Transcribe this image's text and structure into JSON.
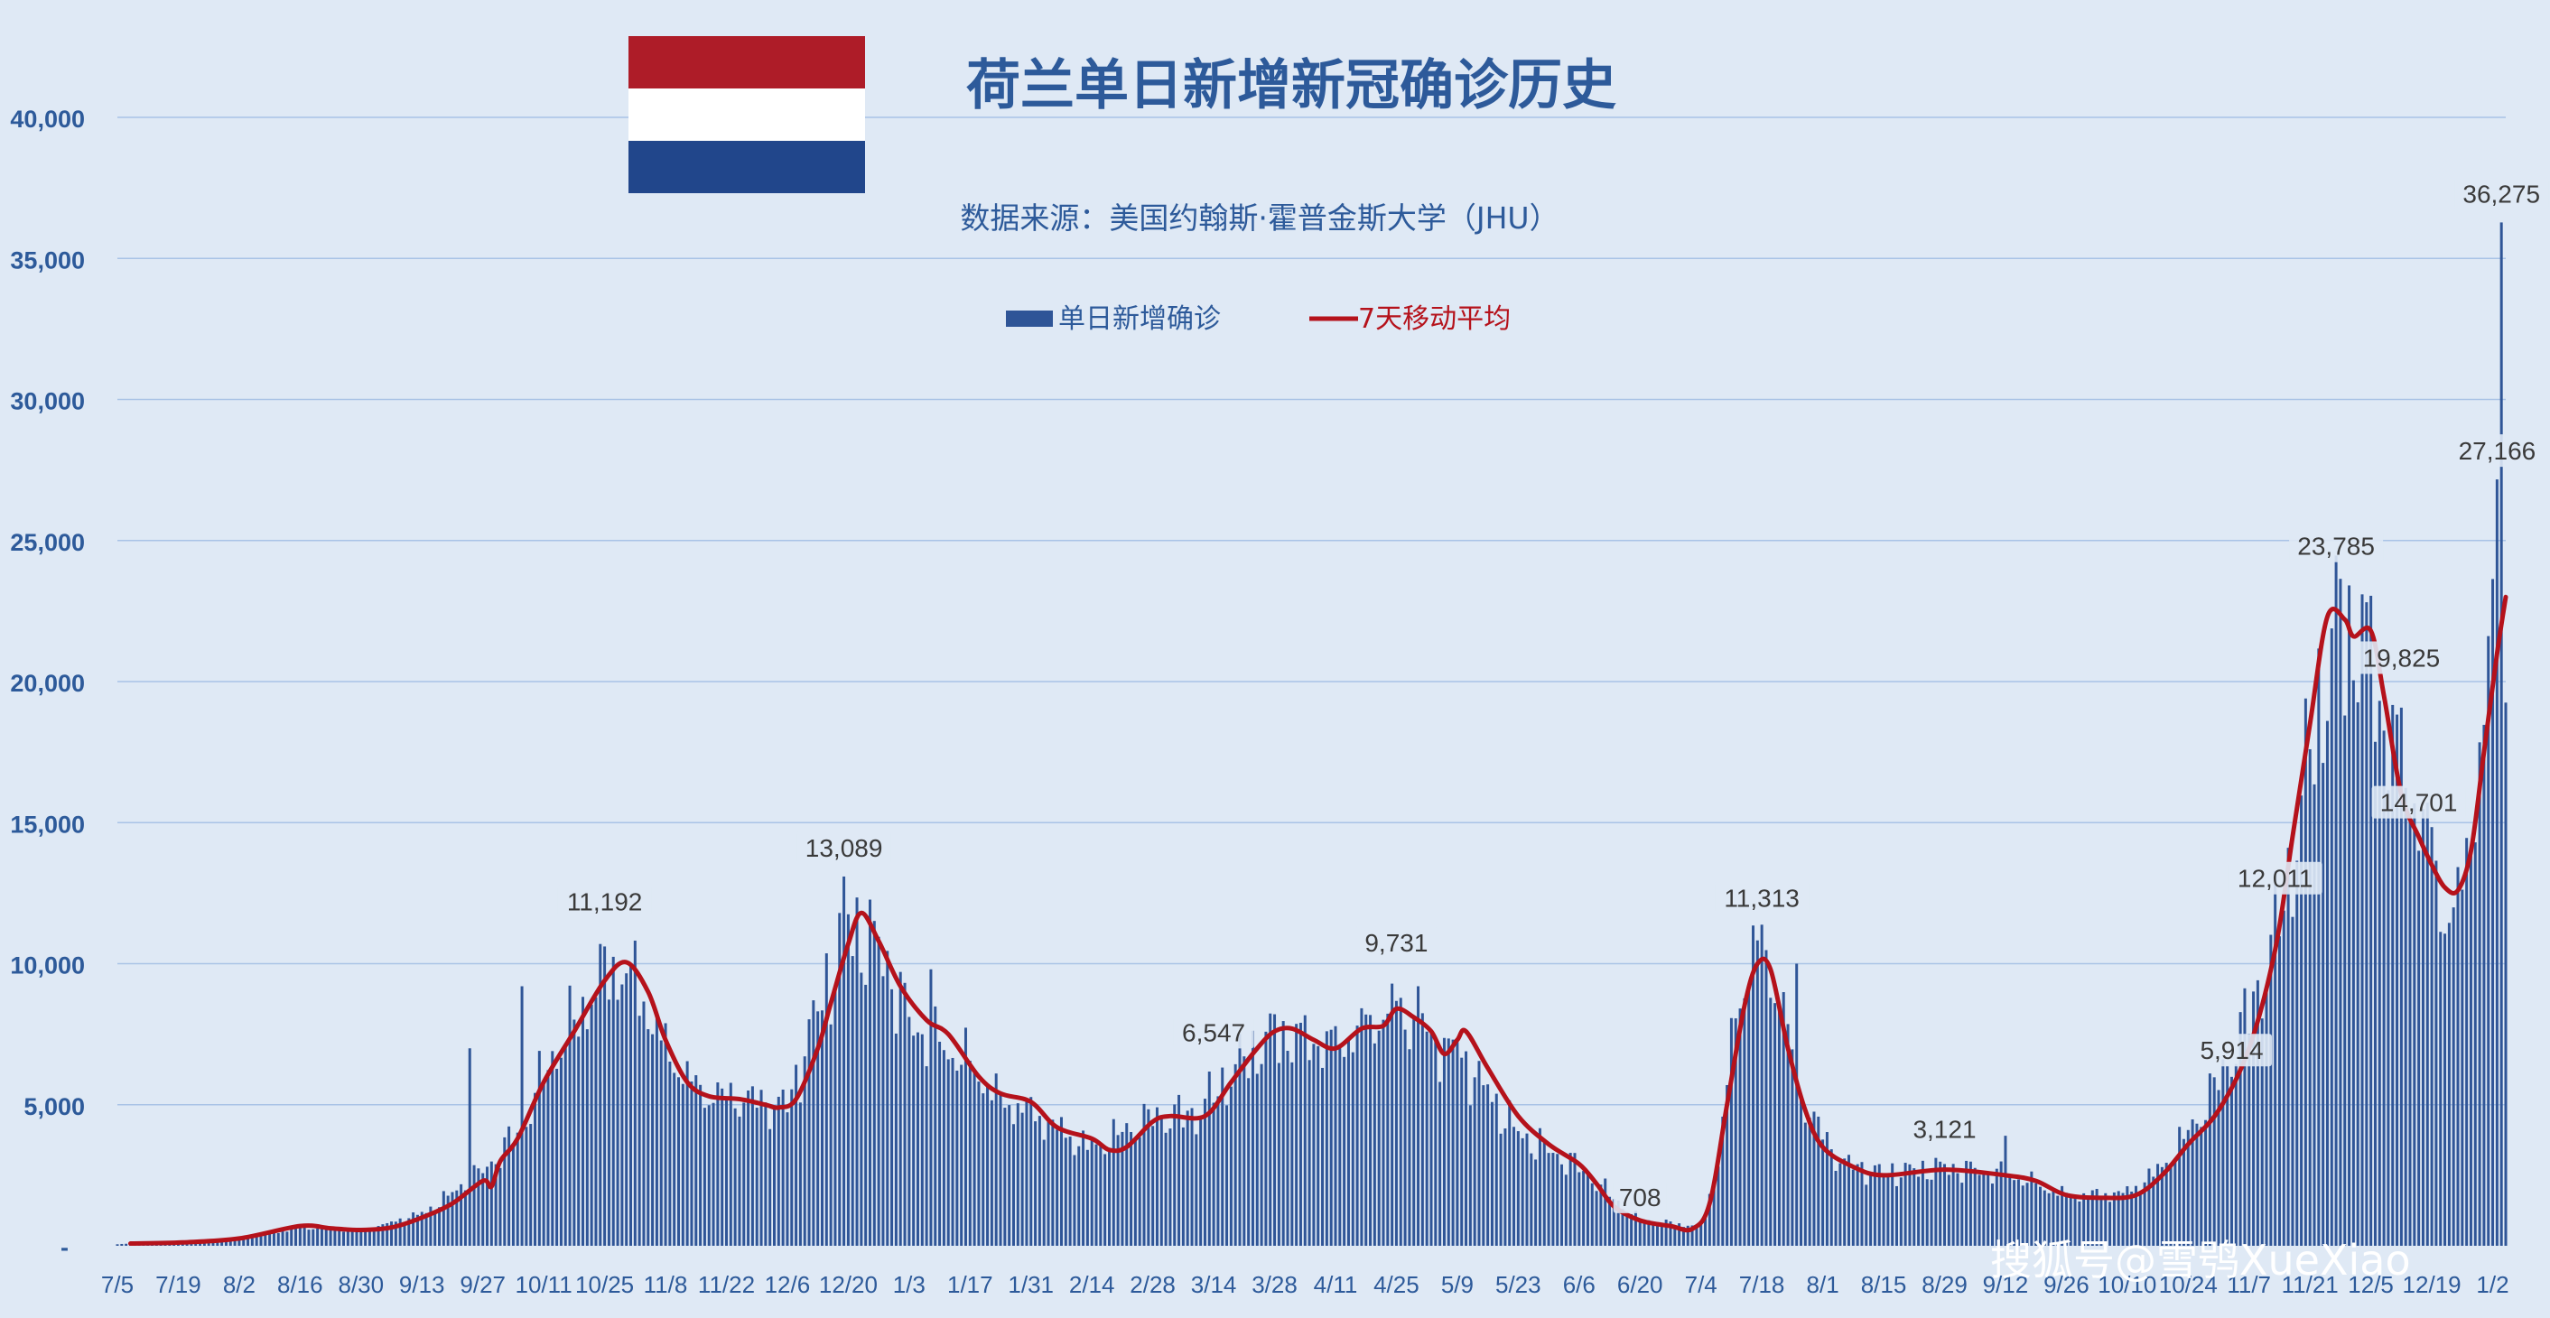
{
  "colors": {
    "background": "#dfe9f5",
    "bars": "#2f5597",
    "average_line": "#b5121b",
    "grid": "#a9c3e6",
    "axis_text": "#2d5a9a",
    "flag_red": "#ae1c28",
    "flag_white": "#ffffff",
    "flag_blue": "#21468b"
  },
  "watermark": "搜狐号@雪鸮XueXiao",
  "chart_data": {
    "type": "bar",
    "title": "荷兰单日新增新冠确诊历史",
    "subtitle": "数据来源：美国约翰斯·霍普金斯大学（JHU）",
    "legend": {
      "position": "top-center",
      "entries": [
        {
          "label": "单日新增确诊",
          "kind": "bar"
        },
        {
          "label": "7天移动平均",
          "kind": "line"
        }
      ]
    },
    "grid": true,
    "ylim": [
      0,
      40000
    ],
    "y_ticks": [
      {
        "value": 0,
        "label": "-"
      },
      {
        "value": 5000,
        "label": "5,000"
      },
      {
        "value": 10000,
        "label": "10,000"
      },
      {
        "value": 15000,
        "label": "15,000"
      },
      {
        "value": 20000,
        "label": "20,000"
      },
      {
        "value": 25000,
        "label": "25,000"
      },
      {
        "value": 30000,
        "label": "30,000"
      },
      {
        "value": 35000,
        "label": "35,000"
      },
      {
        "value": 40000,
        "label": "40,000"
      }
    ],
    "x_start": "2020-07-05",
    "x_end": "2022-01-05",
    "x_ticks": [
      "7/5",
      "7/19",
      "8/2",
      "8/16",
      "8/30",
      "9/13",
      "9/27",
      "10/11",
      "10/25",
      "11/8",
      "11/22",
      "12/6",
      "12/20",
      "1/3",
      "1/17",
      "1/31",
      "2/14",
      "2/28",
      "3/14",
      "3/28",
      "4/11",
      "4/25",
      "5/9",
      "5/23",
      "6/6",
      "6/20",
      "7/4",
      "7/18",
      "8/1",
      "8/15",
      "8/29",
      "9/12",
      "9/26",
      "10/10",
      "10/24",
      "11/7",
      "11/21",
      "12/5",
      "12/19",
      "1/2"
    ],
    "daily_anchors": [
      {
        "date": "2020-07-05",
        "value": 60
      },
      {
        "date": "2020-07-20",
        "value": 120
      },
      {
        "date": "2020-08-03",
        "value": 300
      },
      {
        "date": "2020-08-17",
        "value": 650
      },
      {
        "date": "2020-08-31",
        "value": 550
      },
      {
        "date": "2020-09-14",
        "value": 1200
      },
      {
        "date": "2020-09-28",
        "value": 2800
      },
      {
        "date": "2020-10-06",
        "value": 4200
      },
      {
        "date": "2020-10-12",
        "value": 6500
      },
      {
        "date": "2020-10-19",
        "value": 8200
      },
      {
        "date": "2020-10-26",
        "value": 10000
      },
      {
        "date": "2020-11-01",
        "value": 9500
      },
      {
        "date": "2020-11-08",
        "value": 7000
      },
      {
        "date": "2020-11-16",
        "value": 5500
      },
      {
        "date": "2020-11-29",
        "value": 5200
      },
      {
        "date": "2020-12-06",
        "value": 5000
      },
      {
        "date": "2020-12-12",
        "value": 8000
      },
      {
        "date": "2020-12-20",
        "value": 11500
      },
      {
        "date": "2020-12-28",
        "value": 10500
      },
      {
        "date": "2021-01-03",
        "value": 8000
      },
      {
        "date": "2021-01-17",
        "value": 6500
      },
      {
        "date": "2021-01-24",
        "value": 5200
      },
      {
        "date": "2021-01-31",
        "value": 4800
      },
      {
        "date": "2021-02-10",
        "value": 3800
      },
      {
        "date": "2021-02-14",
        "value": 3500
      },
      {
        "date": "2021-02-28",
        "value": 4600
      },
      {
        "date": "2021-03-10",
        "value": 4700
      },
      {
        "date": "2021-03-20",
        "value": 6500
      },
      {
        "date": "2021-03-28",
        "value": 7600
      },
      {
        "date": "2021-04-11",
        "value": 7200
      },
      {
        "date": "2021-04-25",
        "value": 8600
      },
      {
        "date": "2021-05-02",
        "value": 7500
      },
      {
        "date": "2021-05-09",
        "value": 7000
      },
      {
        "date": "2021-05-23",
        "value": 4000
      },
      {
        "date": "2021-06-06",
        "value": 2800
      },
      {
        "date": "2021-06-20",
        "value": 900
      },
      {
        "date": "2021-07-04",
        "value": 700
      },
      {
        "date": "2021-07-08",
        "value": 3000
      },
      {
        "date": "2021-07-12",
        "value": 8500
      },
      {
        "date": "2021-07-17",
        "value": 11000
      },
      {
        "date": "2021-07-22",
        "value": 9000
      },
      {
        "date": "2021-07-28",
        "value": 5000
      },
      {
        "date": "2021-08-05",
        "value": 3000
      },
      {
        "date": "2021-08-15",
        "value": 2600
      },
      {
        "date": "2021-08-29",
        "value": 2800
      },
      {
        "date": "2021-09-12",
        "value": 2600
      },
      {
        "date": "2021-09-26",
        "value": 1800
      },
      {
        "date": "2021-10-10",
        "value": 1900
      },
      {
        "date": "2021-10-18",
        "value": 2800
      },
      {
        "date": "2021-10-26",
        "value": 4500
      },
      {
        "date": "2021-11-02",
        "value": 6500
      },
      {
        "date": "2021-11-10",
        "value": 9500
      },
      {
        "date": "2021-11-16",
        "value": 13000
      },
      {
        "date": "2021-11-22",
        "value": 18500
      },
      {
        "date": "2021-11-27",
        "value": 22000
      },
      {
        "date": "2021-12-03",
        "value": 22000
      },
      {
        "date": "2021-12-08",
        "value": 19000
      },
      {
        "date": "2021-12-12",
        "value": 17500
      },
      {
        "date": "2021-12-19",
        "value": 14200
      },
      {
        "date": "2021-12-22",
        "value": 11800
      },
      {
        "date": "2021-12-26",
        "value": 12500
      },
      {
        "date": "2021-12-29",
        "value": 16500
      },
      {
        "date": "2022-01-01",
        "value": 20000
      },
      {
        "date": "2022-01-03",
        "value": 27000
      },
      {
        "date": "2022-01-05",
        "value": 24000
      }
    ],
    "spikes": [
      {
        "date": "2020-09-24",
        "value": 7000
      },
      {
        "date": "2020-10-06",
        "value": 9200
      },
      {
        "date": "2020-12-19",
        "value": 13089
      },
      {
        "date": "2021-01-08",
        "value": 9800
      },
      {
        "date": "2021-04-30",
        "value": 9200
      },
      {
        "date": "2021-07-26",
        "value": 10000
      },
      {
        "date": "2021-09-12",
        "value": 3900
      },
      {
        "date": "2022-01-03",
        "value": 27166
      },
      {
        "date": "2022-01-04",
        "value": 36275
      }
    ],
    "moving_average": [
      {
        "date": "2020-07-08",
        "value": 80
      },
      {
        "date": "2020-07-20",
        "value": 120
      },
      {
        "date": "2020-08-02",
        "value": 260
      },
      {
        "date": "2020-08-16",
        "value": 700
      },
      {
        "date": "2020-08-23",
        "value": 620
      },
      {
        "date": "2020-08-30",
        "value": 560
      },
      {
        "date": "2020-09-06",
        "value": 650
      },
      {
        "date": "2020-09-13",
        "value": 1000
      },
      {
        "date": "2020-09-20",
        "value": 1500
      },
      {
        "date": "2020-09-27",
        "value": 2300
      },
      {
        "date": "2020-09-29",
        "value": 2100
      },
      {
        "date": "2020-10-01",
        "value": 3000
      },
      {
        "date": "2020-10-05",
        "value": 3800
      },
      {
        "date": "2020-10-11",
        "value": 5800
      },
      {
        "date": "2020-10-18",
        "value": 7600
      },
      {
        "date": "2020-10-25",
        "value": 9400
      },
      {
        "date": "2020-10-30",
        "value": 10050
      },
      {
        "date": "2020-11-04",
        "value": 9000
      },
      {
        "date": "2020-11-08",
        "value": 7300
      },
      {
        "date": "2020-11-13",
        "value": 5800
      },
      {
        "date": "2020-11-18",
        "value": 5300
      },
      {
        "date": "2020-11-25",
        "value": 5200
      },
      {
        "date": "2020-12-01",
        "value": 5000
      },
      {
        "date": "2020-12-04",
        "value": 4900
      },
      {
        "date": "2020-12-08",
        "value": 5200
      },
      {
        "date": "2020-12-13",
        "value": 7000
      },
      {
        "date": "2020-12-16",
        "value": 8600
      },
      {
        "date": "2020-12-20",
        "value": 10700
      },
      {
        "date": "2020-12-23",
        "value": 11800
      },
      {
        "date": "2020-12-27",
        "value": 10800
      },
      {
        "date": "2021-01-01",
        "value": 9200
      },
      {
        "date": "2021-01-07",
        "value": 8000
      },
      {
        "date": "2021-01-12",
        "value": 7500
      },
      {
        "date": "2021-01-19",
        "value": 6000
      },
      {
        "date": "2021-01-24",
        "value": 5400
      },
      {
        "date": "2021-01-31",
        "value": 5100
      },
      {
        "date": "2021-02-06",
        "value": 4200
      },
      {
        "date": "2021-02-14",
        "value": 3800
      },
      {
        "date": "2021-02-18",
        "value": 3400
      },
      {
        "date": "2021-02-22",
        "value": 3500
      },
      {
        "date": "2021-02-28",
        "value": 4400
      },
      {
        "date": "2021-03-04",
        "value": 4600
      },
      {
        "date": "2021-03-12",
        "value": 4600
      },
      {
        "date": "2021-03-18",
        "value": 5800
      },
      {
        "date": "2021-03-24",
        "value": 7000
      },
      {
        "date": "2021-03-28",
        "value": 7600
      },
      {
        "date": "2021-04-01",
        "value": 7700
      },
      {
        "date": "2021-04-06",
        "value": 7300
      },
      {
        "date": "2021-04-11",
        "value": 7000
      },
      {
        "date": "2021-04-17",
        "value": 7700
      },
      {
        "date": "2021-04-22",
        "value": 7800
      },
      {
        "date": "2021-04-25",
        "value": 8400
      },
      {
        "date": "2021-04-29",
        "value": 8100
      },
      {
        "date": "2021-05-03",
        "value": 7600
      },
      {
        "date": "2021-05-06",
        "value": 6800
      },
      {
        "date": "2021-05-09",
        "value": 7300
      },
      {
        "date": "2021-05-11",
        "value": 7600
      },
      {
        "date": "2021-05-16",
        "value": 6300
      },
      {
        "date": "2021-05-23",
        "value": 4600
      },
      {
        "date": "2021-05-30",
        "value": 3600
      },
      {
        "date": "2021-06-06",
        "value": 2900
      },
      {
        "date": "2021-06-10",
        "value": 2200
      },
      {
        "date": "2021-06-14",
        "value": 1400
      },
      {
        "date": "2021-06-20",
        "value": 900
      },
      {
        "date": "2021-06-27",
        "value": 700
      },
      {
        "date": "2021-07-02",
        "value": 600
      },
      {
        "date": "2021-07-06",
        "value": 1500
      },
      {
        "date": "2021-07-10",
        "value": 5000
      },
      {
        "date": "2021-07-14",
        "value": 8500
      },
      {
        "date": "2021-07-17",
        "value": 10000
      },
      {
        "date": "2021-07-20",
        "value": 9800
      },
      {
        "date": "2021-07-24",
        "value": 7000
      },
      {
        "date": "2021-07-28",
        "value": 4800
      },
      {
        "date": "2021-08-01",
        "value": 3500
      },
      {
        "date": "2021-08-08",
        "value": 2800
      },
      {
        "date": "2021-08-15",
        "value": 2500
      },
      {
        "date": "2021-08-29",
        "value": 2700
      },
      {
        "date": "2021-09-12",
        "value": 2500
      },
      {
        "date": "2021-09-19",
        "value": 2300
      },
      {
        "date": "2021-09-26",
        "value": 1800
      },
      {
        "date": "2021-10-05",
        "value": 1700
      },
      {
        "date": "2021-10-12",
        "value": 1800
      },
      {
        "date": "2021-10-18",
        "value": 2500
      },
      {
        "date": "2021-10-24",
        "value": 3600
      },
      {
        "date": "2021-10-31",
        "value": 4800
      },
      {
        "date": "2021-11-07",
        "value": 7000
      },
      {
        "date": "2021-11-13",
        "value": 10500
      },
      {
        "date": "2021-11-17",
        "value": 14500
      },
      {
        "date": "2021-11-21",
        "value": 18500
      },
      {
        "date": "2021-11-25",
        "value": 22300
      },
      {
        "date": "2021-11-29",
        "value": 22200
      },
      {
        "date": "2021-12-01",
        "value": 21600
      },
      {
        "date": "2021-12-05",
        "value": 21800
      },
      {
        "date": "2021-12-08",
        "value": 19500
      },
      {
        "date": "2021-12-12",
        "value": 16000
      },
      {
        "date": "2021-12-16",
        "value": 14500
      },
      {
        "date": "2021-12-19",
        "value": 13500
      },
      {
        "date": "2021-12-22",
        "value": 12700
      },
      {
        "date": "2021-12-25",
        "value": 12600
      },
      {
        "date": "2021-12-28",
        "value": 14000
      },
      {
        "date": "2021-12-31",
        "value": 17500
      },
      {
        "date": "2022-01-03",
        "value": 21000
      },
      {
        "date": "2022-01-05",
        "value": 23000
      }
    ],
    "annotations": [
      {
        "date": "2020-10-25",
        "value": 11192,
        "text": "11,192"
      },
      {
        "date": "2020-12-19",
        "value": 13089,
        "text": "13,089"
      },
      {
        "date": "2021-03-14",
        "value": 6547,
        "text": "6,547"
      },
      {
        "date": "2021-04-25",
        "value": 9731,
        "text": "9,731"
      },
      {
        "date": "2021-06-20",
        "value": 708,
        "text": "708"
      },
      {
        "date": "2021-07-18",
        "value": 11313,
        "text": "11,313"
      },
      {
        "date": "2021-08-29",
        "value": 3121,
        "text": "3,121"
      },
      {
        "date": "2021-11-03",
        "value": 5914,
        "text": "5,914"
      },
      {
        "date": "2021-11-13",
        "value": 12011,
        "text": "12,011"
      },
      {
        "date": "2021-11-27",
        "value": 23785,
        "text": "23,785"
      },
      {
        "date": "2021-12-12",
        "value": 19825,
        "text": "19,825"
      },
      {
        "date": "2021-12-16",
        "value": 14701,
        "text": "14,701"
      },
      {
        "date": "2022-01-03",
        "value": 27166,
        "text": "27,166"
      },
      {
        "date": "2022-01-04",
        "value": 36275,
        "text": "36,275"
      }
    ]
  }
}
